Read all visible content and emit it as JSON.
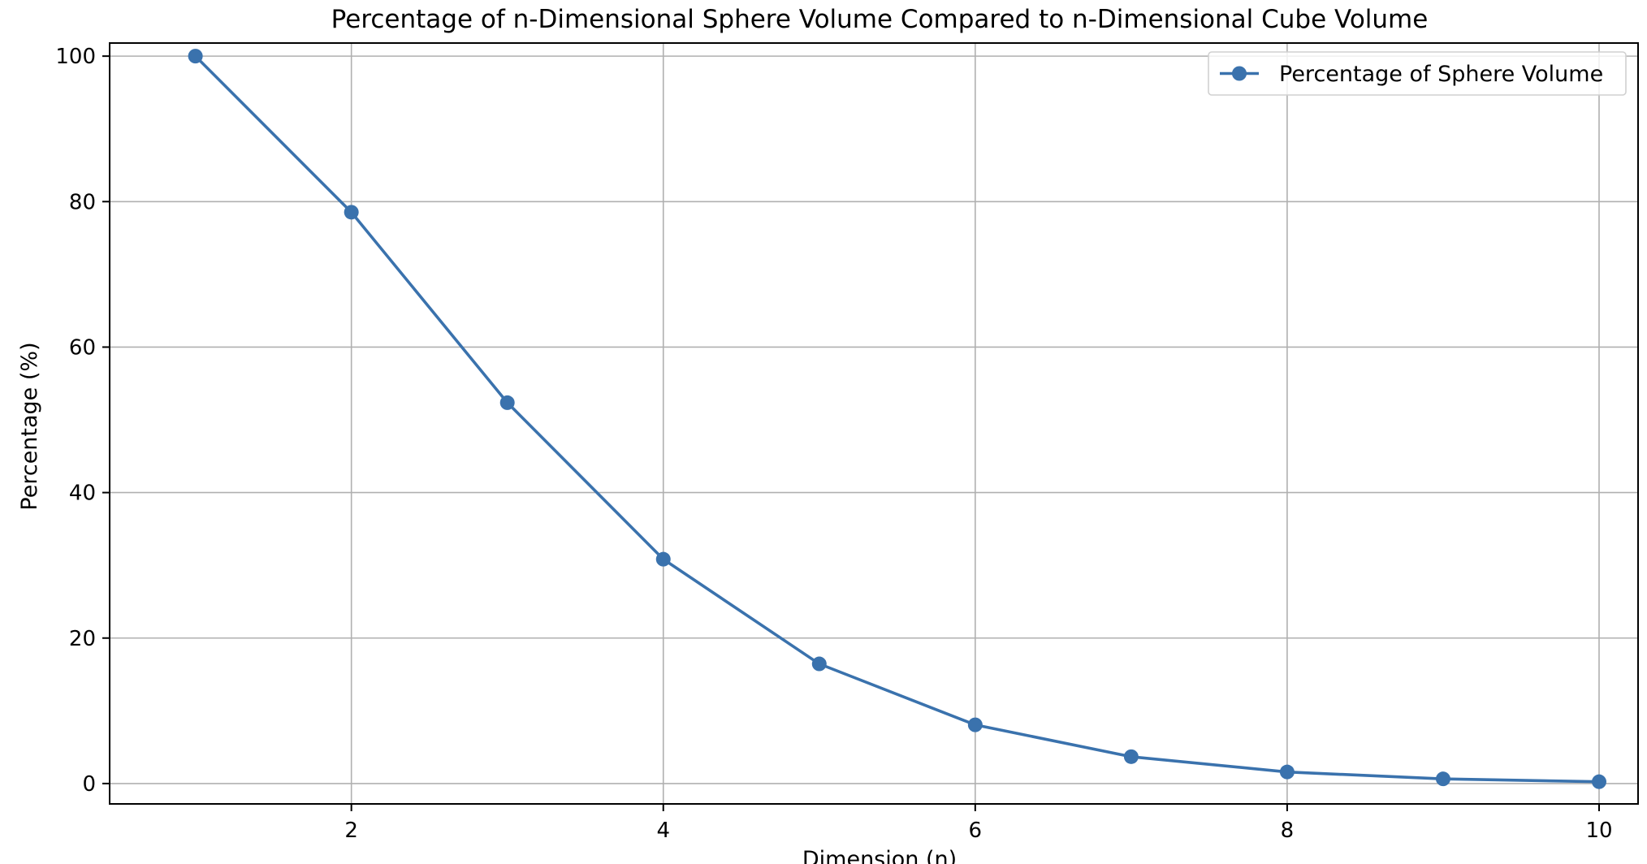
{
  "chart_data": {
    "type": "line",
    "title": "Percentage of n-Dimensional Sphere Volume Compared to n-Dimensional Cube Volume",
    "xlabel": "Dimension (n)",
    "ylabel": "Percentage (%)",
    "xlim": [
      0.45,
      10.25
    ],
    "ylim": [
      -2.8,
      101.8
    ],
    "x_ticks": [
      2,
      4,
      6,
      8,
      10
    ],
    "y_ticks": [
      0,
      20,
      40,
      60,
      80,
      100
    ],
    "grid": true,
    "legend_position": "top-right",
    "series": [
      {
        "name": "Percentage of Sphere Volume",
        "color": "#3a72ad",
        "marker": "circle",
        "x": [
          1,
          2,
          3,
          4,
          5,
          6,
          7,
          8,
          9,
          10
        ],
        "y": [
          100,
          78.54,
          52.36,
          30.84,
          16.45,
          8.07,
          3.69,
          1.59,
          0.64,
          0.25
        ]
      }
    ]
  }
}
